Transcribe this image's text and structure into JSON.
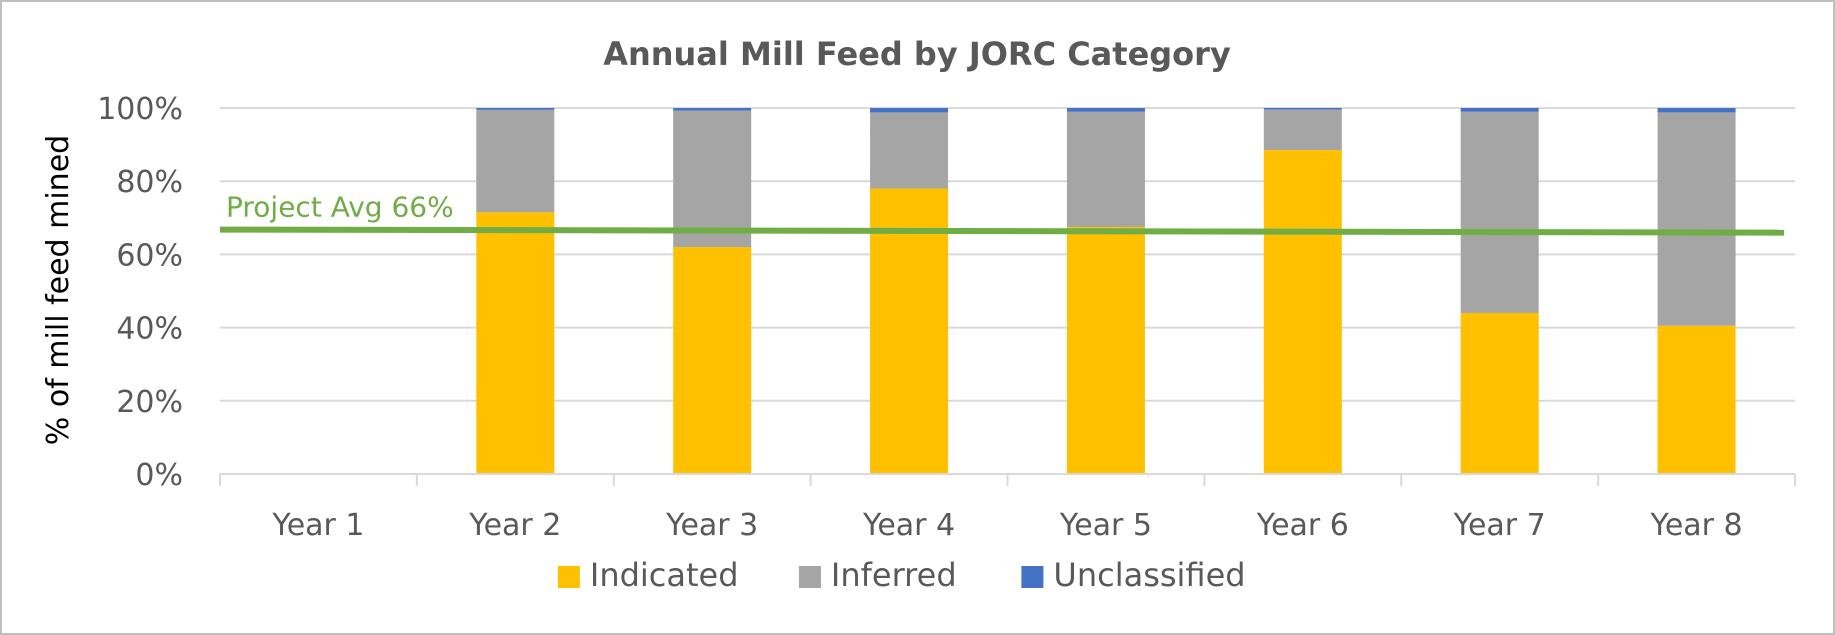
{
  "chart_data": {
    "type": "bar",
    "stacked": true,
    "title": "Annual Mill Feed by JORC Category",
    "ylabel": "% of mill feed mined",
    "xlabel": "",
    "ylim": [
      0,
      100
    ],
    "y_ticks": [
      "0%",
      "20%",
      "40%",
      "60%",
      "80%",
      "100%"
    ],
    "grid": true,
    "legend_position": "bottom",
    "categories": [
      "Year 1",
      "Year 2",
      "Year 3",
      "Year 4",
      "Year 5",
      "Year 6",
      "Year 7",
      "Year 8"
    ],
    "series": [
      {
        "name": "Indicated",
        "color": "#FFC000",
        "values": [
          0,
          71.5,
          62,
          78,
          67.5,
          88.5,
          44,
          40.5
        ]
      },
      {
        "name": "Inferred",
        "color": "#A5A5A5",
        "values": [
          0,
          28,
          37.3,
          20.8,
          31.5,
          11.1,
          55,
          58.3
        ]
      },
      {
        "name": "Unclassified",
        "color": "#4472C4",
        "values": [
          0,
          0.5,
          0.7,
          1.2,
          1.0,
          0.4,
          1.0,
          1.2
        ]
      }
    ],
    "reference_line": {
      "label": "Project Avg 66%",
      "value": 66.5,
      "color": "#70AD47"
    }
  }
}
